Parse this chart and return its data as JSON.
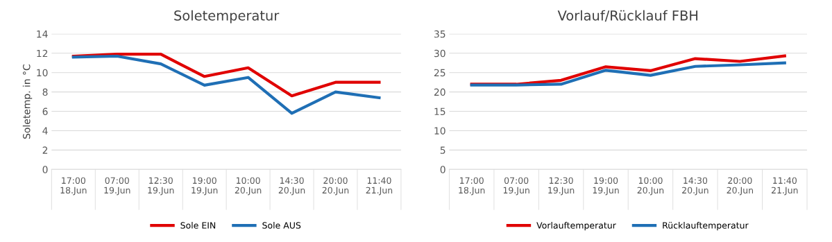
{
  "chart_data": [
    {
      "type": "line",
      "title": "Soletemperatur",
      "ylabel": "Soletemp. in °C",
      "categories": [
        "17:00\n18.Jun",
        "07:00\n19.Jun",
        "12:30\n19.Jun",
        "19:00\n19.Jun",
        "10:00\n20.Jun",
        "14:30\n20.Jun",
        "20:00\n20.Jun",
        "11:40\n21.Jun"
      ],
      "series": [
        {
          "name": "Sole EIN",
          "color": "#e00000",
          "values": [
            11.7,
            11.9,
            11.9,
            9.6,
            10.5,
            7.6,
            9.0,
            9.0
          ]
        },
        {
          "name": "Sole AUS",
          "color": "#1f6fb5",
          "values": [
            11.6,
            11.7,
            10.9,
            8.7,
            9.5,
            5.8,
            8.0,
            7.4
          ]
        }
      ],
      "ylim": [
        0,
        14
      ],
      "yticks": [
        0,
        2,
        4,
        6,
        8,
        10,
        12,
        14
      ],
      "grid": "y",
      "legend": "bottom",
      "marker": "none",
      "line_style": "solid"
    },
    {
      "type": "line",
      "title": "Vorlauf/Rücklauf FBH",
      "categories": [
        "17:00\n18.Jun",
        "07:00\n19.Jun",
        "12:30\n19.Jun",
        "19:00\n19.Jun",
        "10:00\n20.Jun",
        "14:30\n20.Jun",
        "20:00\n20.Jun",
        "11:40\n21.Jun"
      ],
      "series": [
        {
          "name": "Vorlauftemperatur",
          "color": "#e00000",
          "values": [
            22.0,
            22.0,
            23.0,
            26.5,
            25.5,
            28.6,
            27.9,
            29.3
          ]
        },
        {
          "name": "Rücklauftemperatur",
          "color": "#1f6fb5",
          "values": [
            21.8,
            21.8,
            22.0,
            25.6,
            24.3,
            26.6,
            27.0,
            27.5
          ]
        }
      ],
      "ylim": [
        0,
        35
      ],
      "yticks": [
        0,
        5,
        10,
        15,
        20,
        25,
        30,
        35
      ],
      "grid": "y",
      "legend": "bottom",
      "marker": "none",
      "line_style": "solid"
    }
  ]
}
